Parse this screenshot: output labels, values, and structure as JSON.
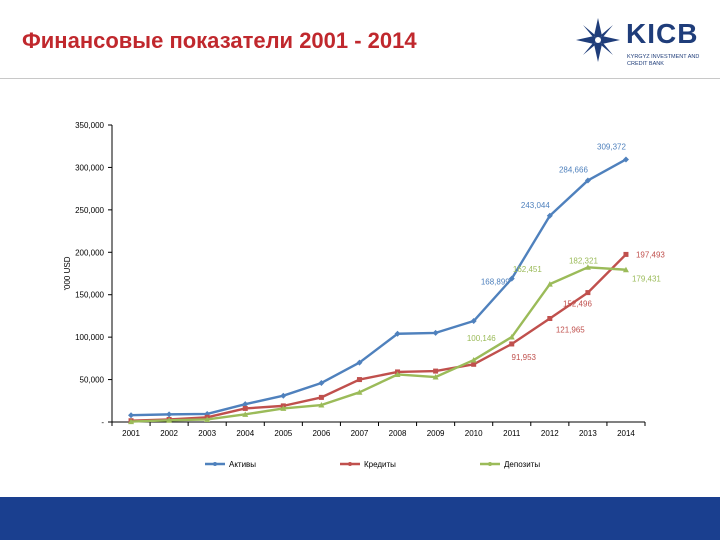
{
  "slide": {
    "title": "Финансовые показатели 2001 - 2014"
  },
  "logo": {
    "name": "KICB",
    "tagline": "KYRGYZ INVESTMENT AND CREDIT BANK"
  },
  "colors": {
    "title": "#c0282d",
    "assets": "#4f81bd",
    "loans": "#c0504d",
    "deposits": "#9bbb59",
    "footer": "#1a3f8f"
  },
  "chart_data": {
    "type": "line",
    "title": "",
    "xlabel": "",
    "ylabel": "'000 USD",
    "ylim": [
      0,
      350000
    ],
    "y_ticks": [
      0,
      50000,
      100000,
      150000,
      200000,
      250000,
      300000,
      350000
    ],
    "y_tick_labels": [
      "-",
      "50,000",
      "100,000",
      "150,000",
      "200,000",
      "250,000",
      "300,000",
      "350,000"
    ],
    "grid": false,
    "legend_position": "bottom",
    "categories": [
      "2001",
      "2002",
      "2003",
      "2004",
      "2005",
      "2006",
      "2007",
      "2008",
      "2009",
      "2010",
      "2011",
      "2012",
      "2013",
      "2014"
    ],
    "series": [
      {
        "name": "Активы",
        "color": "#4f81bd",
        "values": [
          8000,
          9000,
          9500,
          21000,
          31000,
          46000,
          70000,
          104000,
          105000,
          119000,
          168899,
          243044,
          284666,
          309372
        ],
        "labels": [
          {
            "index": 10,
            "text": "168,899"
          },
          {
            "index": 11,
            "text": "243,044"
          },
          {
            "index": 12,
            "text": "284,666"
          },
          {
            "index": 13,
            "text": "309,372"
          }
        ]
      },
      {
        "name": "Кредиты",
        "color": "#c0504d",
        "values": [
          1500,
          3000,
          5500,
          16000,
          19000,
          29000,
          50000,
          59000,
          60000,
          68000,
          91953,
          121965,
          152496,
          197493
        ],
        "labels": [
          {
            "index": 10,
            "text": "91,953"
          },
          {
            "index": 11,
            "text": "121,965"
          },
          {
            "index": 12,
            "text": "152,496"
          },
          {
            "index": 13,
            "text": "197,493"
          }
        ]
      },
      {
        "name": "Депозиты",
        "color": "#9bbb59",
        "values": [
          500,
          2000,
          3000,
          9000,
          16000,
          20000,
          35000,
          56000,
          53000,
          73000,
          100146,
          162451,
          182321,
          179431
        ],
        "labels": [
          {
            "index": 10,
            "text": "100,146"
          },
          {
            "index": 11,
            "text": "162,451"
          },
          {
            "index": 12,
            "text": "182,321"
          },
          {
            "index": 13,
            "text": "179,431"
          }
        ]
      }
    ]
  }
}
